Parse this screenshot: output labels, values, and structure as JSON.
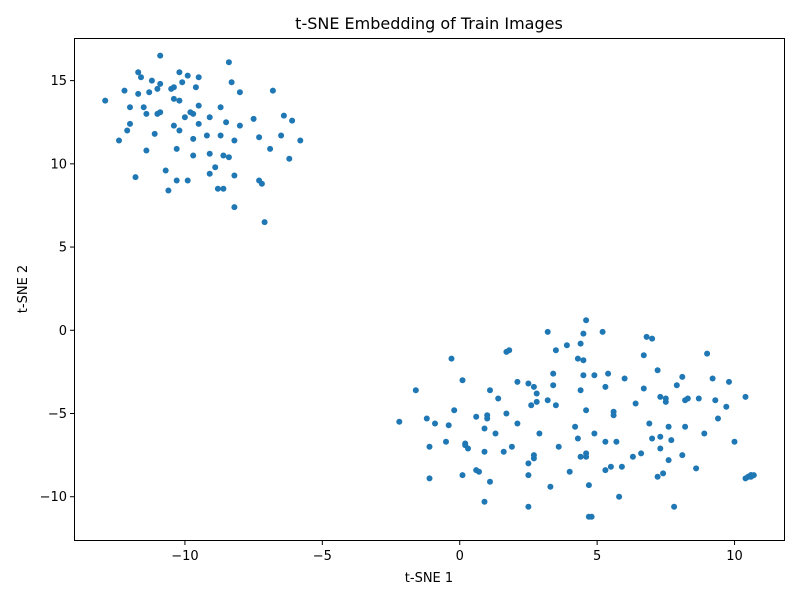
{
  "chart_data": {
    "type": "scatter",
    "title": "t-SNE Embedding of Train Images",
    "xlabel": "t-SNE 1",
    "ylabel": "t-SNE 2",
    "xlim": [
      -14.0,
      11.8
    ],
    "ylim": [
      -12.6,
      17.5
    ],
    "xticks": [
      -10,
      -5,
      0,
      5,
      10
    ],
    "yticks": [
      -10,
      -5,
      0,
      5,
      10,
      15
    ],
    "xtick_labels": [
      "−10",
      "−5",
      "0",
      "5",
      "10"
    ],
    "ytick_labels": [
      "−10",
      "−5",
      "0",
      "5",
      "10",
      "15"
    ],
    "grid": false,
    "point_color": "#1f77b4",
    "series": [
      {
        "points": [
          [
            -12.9,
            13.8
          ],
          [
            -12.4,
            11.4
          ],
          [
            -12.2,
            14.4
          ],
          [
            -12.1,
            12.0
          ],
          [
            -12.0,
            12.4
          ],
          [
            -12.0,
            13.4
          ],
          [
            -11.8,
            9.2
          ],
          [
            -11.7,
            15.5
          ],
          [
            -11.7,
            14.2
          ],
          [
            -11.6,
            15.2
          ],
          [
            -11.5,
            13.4
          ],
          [
            -11.4,
            10.8
          ],
          [
            -11.4,
            13.0
          ],
          [
            -11.3,
            14.3
          ],
          [
            -11.2,
            15.0
          ],
          [
            -11.1,
            11.8
          ],
          [
            -11.0,
            13.0
          ],
          [
            -11.0,
            14.5
          ],
          [
            -10.9,
            13.1
          ],
          [
            -10.9,
            16.5
          ],
          [
            -10.9,
            14.8
          ],
          [
            -10.7,
            9.6
          ],
          [
            -10.6,
            8.4
          ],
          [
            -10.5,
            14.5
          ],
          [
            -10.4,
            14.6
          ],
          [
            -10.4,
            12.3
          ],
          [
            -10.4,
            13.9
          ],
          [
            -10.3,
            10.9
          ],
          [
            -10.3,
            9.0
          ],
          [
            -10.2,
            12.0
          ],
          [
            -10.2,
            15.5
          ],
          [
            -10.2,
            13.8
          ],
          [
            -10.1,
            14.9
          ],
          [
            -10.0,
            12.8
          ],
          [
            -9.9,
            15.3
          ],
          [
            -9.9,
            9.0
          ],
          [
            -9.8,
            13.1
          ],
          [
            -9.7,
            11.5
          ],
          [
            -9.7,
            10.5
          ],
          [
            -9.7,
            13.0
          ],
          [
            -9.6,
            14.6
          ],
          [
            -9.5,
            13.5
          ],
          [
            -9.5,
            12.4
          ],
          [
            -9.5,
            15.2
          ],
          [
            -9.2,
            11.7
          ],
          [
            -9.1,
            9.4
          ],
          [
            -9.1,
            12.8
          ],
          [
            -9.1,
            10.6
          ],
          [
            -8.9,
            9.8
          ],
          [
            -8.8,
            8.5
          ],
          [
            -8.7,
            11.7
          ],
          [
            -8.7,
            13.4
          ],
          [
            -8.6,
            8.5
          ],
          [
            -8.6,
            10.5
          ],
          [
            -8.5,
            12.5
          ],
          [
            -8.4,
            16.1
          ],
          [
            -8.4,
            10.4
          ],
          [
            -8.3,
            14.9
          ],
          [
            -8.2,
            9.3
          ],
          [
            -8.2,
            11.4
          ],
          [
            -8.2,
            7.4
          ],
          [
            -8.0,
            12.3
          ],
          [
            -8.0,
            14.3
          ],
          [
            -7.5,
            12.7
          ],
          [
            -7.3,
            11.6
          ],
          [
            -7.3,
            9.0
          ],
          [
            -7.2,
            8.8
          ],
          [
            -7.1,
            6.5
          ],
          [
            -6.9,
            10.9
          ],
          [
            -6.8,
            14.4
          ],
          [
            -6.5,
            11.7
          ],
          [
            -6.4,
            12.9
          ],
          [
            -6.2,
            10.3
          ],
          [
            -6.1,
            12.6
          ],
          [
            -5.8,
            11.4
          ],
          [
            -2.2,
            -5.5
          ],
          [
            -1.6,
            -3.6
          ],
          [
            -1.2,
            -5.3
          ],
          [
            -1.1,
            -8.9
          ],
          [
            -1.1,
            -7.0
          ],
          [
            -0.9,
            -5.6
          ],
          [
            -0.5,
            -6.7
          ],
          [
            -0.4,
            -5.7
          ],
          [
            -0.3,
            -1.7
          ],
          [
            -0.2,
            -4.8
          ],
          [
            0.1,
            -8.7
          ],
          [
            0.1,
            -3.0
          ],
          [
            0.2,
            -6.8
          ],
          [
            0.2,
            -6.9
          ],
          [
            0.3,
            -7.1
          ],
          [
            0.6,
            -8.4
          ],
          [
            0.6,
            -5.2
          ],
          [
            0.7,
            -8.5
          ],
          [
            0.9,
            -10.3
          ],
          [
            0.9,
            -5.9
          ],
          [
            0.9,
            -7.3
          ],
          [
            1.0,
            -5.1
          ],
          [
            1.0,
            -5.3
          ],
          [
            1.1,
            -9.1
          ],
          [
            1.1,
            -3.6
          ],
          [
            1.3,
            -6.2
          ],
          [
            1.4,
            -4.1
          ],
          [
            1.6,
            -7.3
          ],
          [
            1.7,
            -1.3
          ],
          [
            1.7,
            -5.0
          ],
          [
            1.8,
            -1.2
          ],
          [
            1.9,
            -7.0
          ],
          [
            2.1,
            -5.6
          ],
          [
            2.1,
            -3.1
          ],
          [
            2.5,
            -8.0
          ],
          [
            2.5,
            -10.6
          ],
          [
            2.5,
            -8.7
          ],
          [
            2.5,
            -3.2
          ],
          [
            2.6,
            -4.5
          ],
          [
            2.7,
            -3.4
          ],
          [
            2.7,
            -7.5
          ],
          [
            2.7,
            -7.7
          ],
          [
            2.8,
            -3.8
          ],
          [
            2.8,
            -4.3
          ],
          [
            2.9,
            -6.2
          ],
          [
            3.2,
            -4.2
          ],
          [
            3.2,
            -0.1
          ],
          [
            3.3,
            -9.4
          ],
          [
            3.4,
            -2.6
          ],
          [
            3.4,
            -3.3
          ],
          [
            3.5,
            -1.2
          ],
          [
            3.5,
            -4.5
          ],
          [
            3.6,
            -7.0
          ],
          [
            3.9,
            -0.9
          ],
          [
            4.0,
            -8.5
          ],
          [
            4.2,
            -5.8
          ],
          [
            4.3,
            -6.5
          ],
          [
            4.3,
            -1.7
          ],
          [
            4.4,
            -3.6
          ],
          [
            4.4,
            -0.8
          ],
          [
            4.4,
            -7.6
          ],
          [
            4.5,
            -1.8
          ],
          [
            4.5,
            -2.7
          ],
          [
            4.5,
            -0.2
          ],
          [
            4.6,
            -4.8
          ],
          [
            4.6,
            -7.4
          ],
          [
            4.6,
            -7.6
          ],
          [
            4.6,
            0.6
          ],
          [
            4.7,
            -9.3
          ],
          [
            4.7,
            -11.2
          ],
          [
            4.8,
            -11.2
          ],
          [
            4.9,
            -2.7
          ],
          [
            4.9,
            -6.2
          ],
          [
            5.2,
            -0.1
          ],
          [
            5.3,
            -3.4
          ],
          [
            5.3,
            -6.7
          ],
          [
            5.3,
            -8.4
          ],
          [
            5.4,
            -2.6
          ],
          [
            5.5,
            -8.2
          ],
          [
            5.6,
            -5.1
          ],
          [
            5.6,
            -4.9
          ],
          [
            5.7,
            -6.7
          ],
          [
            5.8,
            -10.0
          ],
          [
            5.9,
            -8.2
          ],
          [
            6.0,
            -2.9
          ],
          [
            6.3,
            -7.6
          ],
          [
            6.4,
            -4.4
          ],
          [
            6.6,
            -7.4
          ],
          [
            6.7,
            -3.5
          ],
          [
            6.7,
            -1.5
          ],
          [
            6.8,
            -0.4
          ],
          [
            6.9,
            -5.6
          ],
          [
            7.0,
            -6.5
          ],
          [
            7.0,
            -0.5
          ],
          [
            7.2,
            -8.8
          ],
          [
            7.2,
            -2.4
          ],
          [
            7.3,
            -4.0
          ],
          [
            7.3,
            -6.4
          ],
          [
            7.3,
            -7.1
          ],
          [
            7.4,
            -8.6
          ],
          [
            7.5,
            -4.3
          ],
          [
            7.5,
            -4.1
          ],
          [
            7.6,
            -7.8
          ],
          [
            7.6,
            -5.8
          ],
          [
            7.7,
            -6.6
          ],
          [
            7.8,
            -10.6
          ],
          [
            7.9,
            -3.3
          ],
          [
            8.1,
            -7.5
          ],
          [
            8.1,
            -2.8
          ],
          [
            8.2,
            -4.2
          ],
          [
            8.2,
            -5.8
          ],
          [
            8.3,
            -4.1
          ],
          [
            8.6,
            -8.3
          ],
          [
            8.7,
            -4.1
          ],
          [
            8.9,
            -6.2
          ],
          [
            9.0,
            -1.4
          ],
          [
            9.2,
            -2.9
          ],
          [
            9.3,
            -4.2
          ],
          [
            9.4,
            -5.3
          ],
          [
            9.7,
            -4.6
          ],
          [
            9.8,
            -3.1
          ],
          [
            10.0,
            -6.7
          ],
          [
            10.4,
            -4.0
          ],
          [
            10.4,
            -8.9
          ],
          [
            10.5,
            -8.8
          ],
          [
            10.5,
            -8.8
          ],
          [
            10.6,
            -8.8
          ],
          [
            10.6,
            -8.7
          ],
          [
            10.6,
            -8.7
          ],
          [
            10.7,
            -8.7
          ]
        ]
      }
    ]
  }
}
